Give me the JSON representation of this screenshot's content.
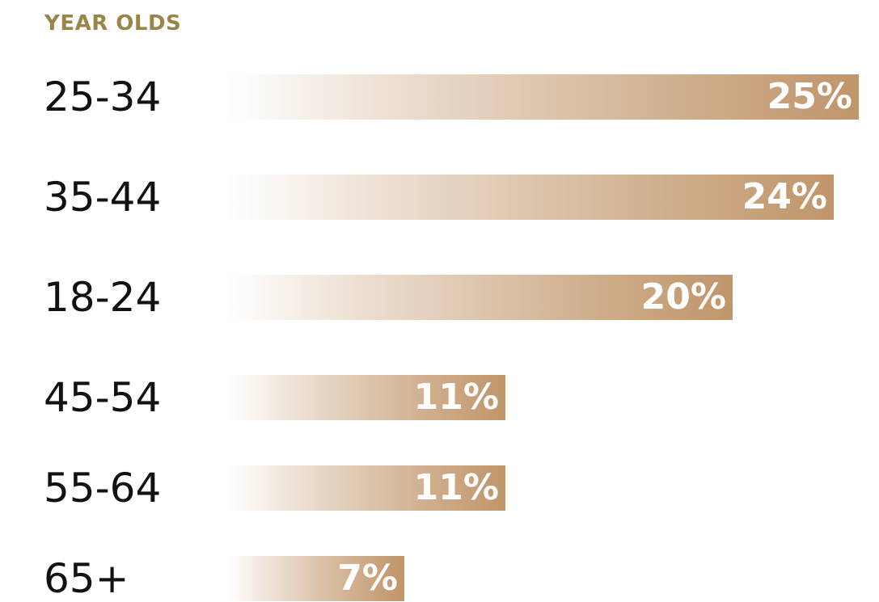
{
  "header": "YEAR OLDS",
  "chart_data": {
    "type": "bar",
    "orientation": "horizontal",
    "title": "YEAR OLDS",
    "categories": [
      "25-34",
      "35-44",
      "18-24",
      "45-54",
      "55-64",
      "65+"
    ],
    "values": [
      25,
      24,
      20,
      11,
      11,
      7
    ],
    "value_labels": [
      "25%",
      "24%",
      "20%",
      "11%",
      "11%",
      "7%"
    ],
    "unit": "%",
    "bar_color": "#c0956a",
    "header_color": "#9a8448",
    "grid": false,
    "legend": "none"
  }
}
